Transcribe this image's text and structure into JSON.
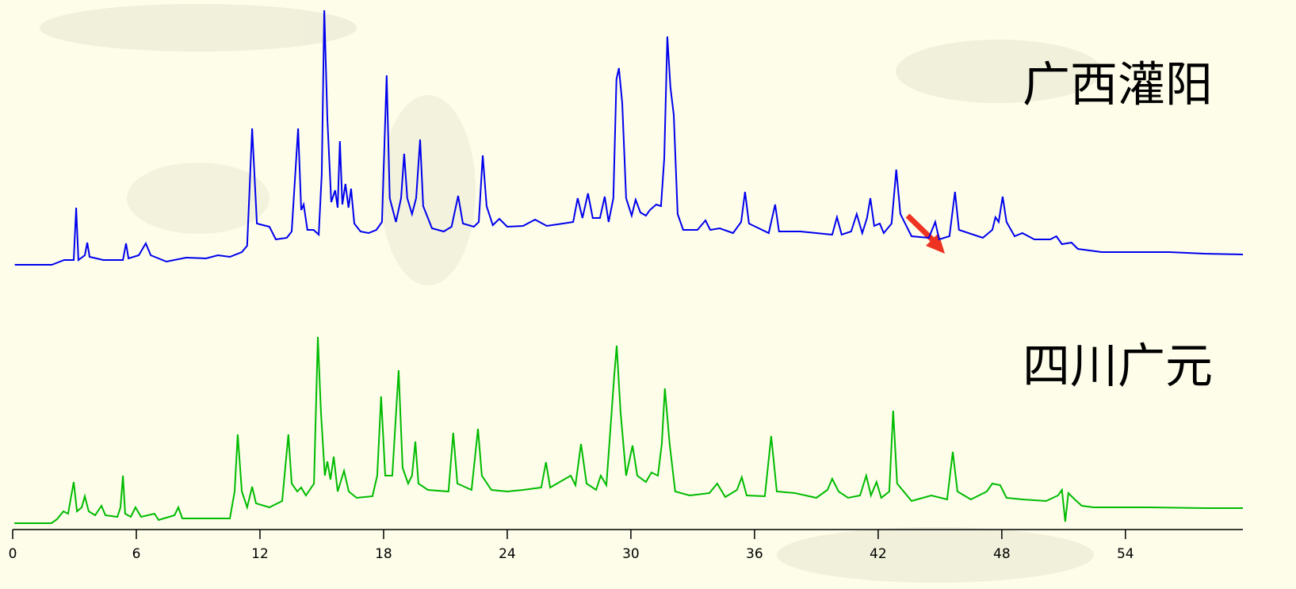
{
  "chart_data": [
    {
      "type": "line",
      "x": [
        0.1,
        1.9,
        2.5,
        2.96,
        3.08,
        3.19,
        3.5,
        3.62,
        3.73,
        4.4,
        5.35,
        5.5,
        5.62,
        6.12,
        6.46,
        6.7,
        7.46,
        8.42,
        9.38,
        9.96,
        10.54,
        11.12,
        11.38,
        11.62,
        11.85,
        12.15,
        12.46,
        12.77,
        13.3,
        13.54,
        13.85,
        14,
        14.12,
        14.3,
        14.6,
        14.85,
        15,
        15.12,
        15.27,
        15.46,
        15.65,
        15.77,
        15.88,
        16,
        16.15,
        16.3,
        16.42,
        16.58,
        16.88,
        17.27,
        17.65,
        17.92,
        18.15,
        18.3,
        18.6,
        18.85,
        19,
        19.15,
        19.38,
        19.58,
        19.77,
        19.92,
        20.35,
        20.92,
        21.3,
        21.62,
        21.85,
        22.38,
        22.62,
        22.81,
        23,
        23.3,
        23.62,
        24,
        24.77,
        25.35,
        25.92,
        26.7,
        27.2,
        27.42,
        27.65,
        27.92,
        28.15,
        28.5,
        28.73,
        28.92,
        29.15,
        29.3,
        29.42,
        29.58,
        29.77,
        30.04,
        30.23,
        30.46,
        30.73,
        30.92,
        31.23,
        31.46,
        31.62,
        31.77,
        31.92,
        32.08,
        32.27,
        32.54,
        33.23,
        33.62,
        33.85,
        34.31,
        34.96,
        35.35,
        35.54,
        35.73,
        36.69,
        37,
        37.19,
        38.23,
        39.77,
        40,
        40.23,
        40.69,
        40.96,
        41.23,
        41.46,
        41.62,
        41.81,
        42.08,
        42.27,
        42.65,
        42.88,
        43.08,
        43.62,
        44.46,
        44.77,
        44.96,
        45.46,
        45.73,
        45.92,
        47.08,
        47.54,
        47.69,
        47.85,
        48.04,
        48.23,
        48.62,
        49,
        49.58,
        50.35,
        50.65,
        50.92,
        51.38,
        51.69,
        52.85,
        54.77,
        56.12,
        57.85,
        59.7
      ],
      "series": [
        {
          "name": "广西灌阳",
          "color": "#0000ee",
          "values": [
            6,
            6,
            12,
            12,
            78,
            12,
            18,
            34,
            16,
            12,
            12,
            33,
            14,
            18,
            33,
            18,
            10,
            15,
            14,
            18,
            16,
            22,
            30,
            178,
            58,
            56,
            54,
            38,
            40,
            48,
            178,
            75,
            82,
            50,
            50,
            44,
            120,
            327,
            190,
            85,
            100,
            78,
            162,
            82,
            108,
            78,
            102,
            58,
            48,
            46,
            50,
            60,
            245,
            90,
            60,
            90,
            146,
            90,
            70,
            90,
            164,
            80,
            52,
            48,
            54,
            93,
            58,
            54,
            60,
            144,
            80,
            56,
            64,
            54,
            55,
            63,
            55,
            58,
            60,
            90,
            65,
            96,
            65,
            65,
            92,
            60,
            90,
            240,
            254,
            210,
            90,
            68,
            88,
            72,
            68,
            75,
            82,
            80,
            140,
            294,
            230,
            195,
            70,
            50,
            50,
            62,
            50,
            52,
            46,
            60,
            98,
            58,
            46,
            82,
            48,
            48,
            44,
            66,
            44,
            48,
            70,
            46,
            65,
            90,
            55,
            58,
            46,
            58,
            126,
            70,
            42,
            40,
            60,
            38,
            42,
            98,
            50,
            40,
            50,
            66,
            60,
            92,
            60,
            42,
            46,
            38,
            38,
            42,
            32,
            34,
            26,
            22,
            22,
            22,
            20,
            19
          ]
        }
      ],
      "xlim": [
        0,
        59.7
      ],
      "ylim": [
        0,
        330
      ]
    },
    {
      "type": "line",
      "x": [
        0.08,
        1.88,
        2.15,
        2.46,
        2.69,
        2.96,
        3.12,
        3.35,
        3.5,
        3.69,
        4,
        4.31,
        4.5,
        5.08,
        5.23,
        5.35,
        5.46,
        5.73,
        5.96,
        6.23,
        6.88,
        7.08,
        7.85,
        8.04,
        8.23,
        9.38,
        10.54,
        10.77,
        10.92,
        11.12,
        11.38,
        11.62,
        11.81,
        12.46,
        13.08,
        13.38,
        13.54,
        13.81,
        14,
        14.23,
        14.62,
        14.81,
        14.96,
        15.15,
        15.27,
        15.42,
        15.58,
        15.77,
        16.08,
        16.31,
        16.69,
        17.46,
        17.69,
        17.88,
        18.08,
        18.42,
        18.73,
        18.92,
        19.19,
        19.38,
        19.54,
        19.69,
        20.15,
        21.15,
        21.38,
        21.58,
        22.27,
        22.58,
        22.77,
        23.23,
        24,
        24.77,
        25.65,
        25.88,
        26.08,
        27.08,
        27.31,
        27.58,
        27.85,
        28.31,
        28.54,
        28.81,
        29.04,
        29.19,
        29.31,
        29.5,
        29.77,
        30.08,
        30.31,
        30.73,
        31,
        31.31,
        31.5,
        31.65,
        31.88,
        32.15,
        32.85,
        33.81,
        34.19,
        34.58,
        35.15,
        35.38,
        35.62,
        36.5,
        36.81,
        37.08,
        37.96,
        39,
        39.54,
        39.77,
        40.08,
        40.54,
        41.12,
        41.42,
        41.65,
        41.92,
        42.15,
        42.54,
        42.73,
        42.92,
        43.62,
        44.58,
        45.35,
        45.62,
        45.85,
        46.5,
        47.27,
        47.54,
        47.92,
        48.23,
        49,
        50.15,
        50.73,
        50.92,
        51.08,
        51.23,
        51.54,
        51.88,
        52.46,
        55.15,
        57.85,
        59.7
      ],
      "series": [
        {
          "name": "四川广元",
          "color": "#00bb00",
          "values": [
            2,
            2,
            7,
            17,
            14,
            54,
            17,
            22,
            36,
            17,
            12,
            24,
            12,
            10,
            22,
            62,
            14,
            10,
            22,
            10,
            14,
            6,
            12,
            22,
            8,
            8,
            8,
            42,
            114,
            42,
            22,
            48,
            27,
            22,
            30,
            114,
            52,
            42,
            47,
            37,
            52,
            237,
            142,
            62,
            80,
            57,
            86,
            42,
            68,
            42,
            34,
            36,
            62,
            162,
            62,
            62,
            195,
            72,
            52,
            62,
            105,
            52,
            44,
            42,
            116,
            52,
            44,
            121,
            62,
            44,
            42,
            44,
            47,
            79,
            47,
            62,
            50,
            102,
            52,
            44,
            62,
            50,
            132,
            187,
            226,
            142,
            62,
            100,
            62,
            54,
            66,
            62,
            102,
            172,
            102,
            42,
            37,
            40,
            52,
            35,
            44,
            60,
            37,
            36,
            112,
            42,
            40,
            34,
            44,
            58,
            42,
            34,
            37,
            62,
            37,
            54,
            34,
            42,
            144,
            52,
            30,
            37,
            32,
            92,
            42,
            32,
            42,
            52,
            50,
            34,
            32,
            30,
            37,
            44,
            4,
            40,
            32,
            24,
            22,
            22,
            21,
            21
          ]
        }
      ],
      "xlim": [
        0,
        59.7
      ],
      "ylim": [
        0,
        250
      ],
      "xticks": [
        0,
        6,
        12,
        18,
        24,
        30,
        36,
        42,
        48,
        54
      ]
    }
  ]
}
